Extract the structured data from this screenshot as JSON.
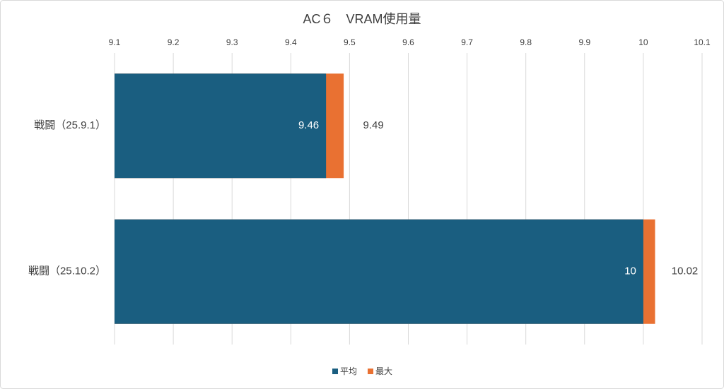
{
  "chart_data": {
    "type": "bar",
    "orientation": "horizontal",
    "title": "AC６　VRAM使用量",
    "categories": [
      "戦闘（25.9.1）",
      "戦闘（25.10.2）"
    ],
    "series": [
      {
        "name": "平均",
        "color": "#1a5e80",
        "values": [
          9.46,
          10
        ]
      },
      {
        "name": "最大",
        "color": "#e97132",
        "values": [
          9.49,
          10.02
        ]
      }
    ],
    "xlim": [
      9.1,
      10.1
    ],
    "xticks": [
      9.1,
      9.2,
      9.3,
      9.4,
      9.5,
      9.6,
      9.7,
      9.8,
      9.9,
      10,
      10.1
    ],
    "grid": true,
    "legend": "bottom"
  }
}
